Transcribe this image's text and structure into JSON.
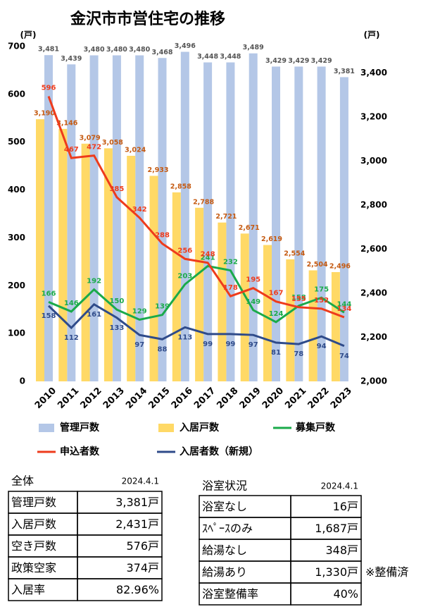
{
  "chart_data": {
    "type": "bar",
    "title": "金沢市市営住宅の推移",
    "y_unit": "(戸)",
    "y2_unit": "(戸)",
    "categories": [
      "2010",
      "2011",
      "2012",
      "2013",
      "2014",
      "2015",
      "2016",
      "2017",
      "2018",
      "2019",
      "2020",
      "2021",
      "2022",
      "2023"
    ],
    "ylim": [
      0,
      700
    ],
    "yticks": [
      0,
      100,
      200,
      300,
      400,
      500,
      600,
      700
    ],
    "y2lim": [
      2000,
      3520
    ],
    "y2ticks": [
      {
        "value": 2000,
        "label": "2,000"
      },
      {
        "value": 2200,
        "label": "2,200"
      },
      {
        "value": 2400,
        "label": "2,400"
      },
      {
        "value": 2600,
        "label": "2,600"
      },
      {
        "value": 2800,
        "label": "2,800"
      },
      {
        "value": 3000,
        "label": "3,000"
      },
      {
        "value": 3200,
        "label": "3,200"
      },
      {
        "value": 3400,
        "label": "3,400"
      }
    ],
    "series": [
      {
        "name": "管理戸数",
        "type": "bar",
        "axis": "y2",
        "color": "#b4c7e7",
        "label_color": "#555555",
        "values": [
          3481,
          3439,
          3480,
          3480,
          3480,
          3468,
          3496,
          3448,
          3448,
          3489,
          3429,
          3429,
          3429,
          3381
        ],
        "value_labels": [
          "3,481",
          "3,439",
          "3,480",
          "3,480",
          "3,480",
          "3,468",
          "3,496",
          "3,448",
          "3,448",
          "3,489",
          "3,429",
          "3,429",
          "3,429",
          "3,381"
        ]
      },
      {
        "name": "入居戸数",
        "type": "bar",
        "axis": "y2",
        "color": "#ffd966",
        "label_color": "#c55a11",
        "values": [
          3190,
          3146,
          3079,
          3058,
          3024,
          2933,
          2858,
          2788,
          2721,
          2671,
          2619,
          2554,
          2504,
          2496
        ],
        "value_labels": [
          "3,190",
          "3,146",
          "3,079",
          "3,058",
          "3,024",
          "2,933",
          "2,858",
          "2,788",
          "2,721",
          "2,671",
          "2,619",
          "2,554",
          "2,504",
          "2,496"
        ]
      },
      {
        "name": "募集戸数",
        "type": "line",
        "axis": "y",
        "color": "#1aaa4a",
        "values": [
          166,
          146,
          192,
          150,
          129,
          139,
          203,
          241,
          232,
          149,
          124,
          158,
          175,
          144
        ]
      },
      {
        "name": "申込者数",
        "type": "line",
        "axis": "y",
        "color": "#ee3b1c",
        "values": [
          596,
          467,
          472,
          385,
          342,
          288,
          256,
          248,
          178,
          195,
          167,
          155,
          152,
          134
        ]
      },
      {
        "name": "入居者数（新規）",
        "type": "line",
        "axis": "y",
        "color": "#2f4b8a",
        "values": [
          158,
          112,
          161,
          133,
          97,
          88,
          113,
          99,
          99,
          97,
          81,
          78,
          94,
          74
        ]
      }
    ]
  },
  "tables": [
    {
      "title": "全体",
      "date": "2024.4.1",
      "rows": [
        [
          "管理戸数",
          "3,381戸"
        ],
        [
          "入居戸数",
          "2,431戸"
        ],
        [
          "空き戸数",
          "576戸"
        ],
        [
          "政策空家",
          "374戸"
        ],
        [
          "入居率",
          "82.96%"
        ]
      ]
    },
    {
      "title": "浴室状況",
      "date": "2024.4.1",
      "rows": [
        [
          "浴室なし",
          "16戸"
        ],
        [
          "ｽﾍﾟｰｽのみ",
          "1,687戸"
        ],
        [
          "給湯なし",
          "348戸"
        ],
        [
          "給湯あり",
          "1,330戸"
        ],
        [
          "浴室整備率",
          "40%"
        ]
      ],
      "note": "※整備済"
    }
  ]
}
